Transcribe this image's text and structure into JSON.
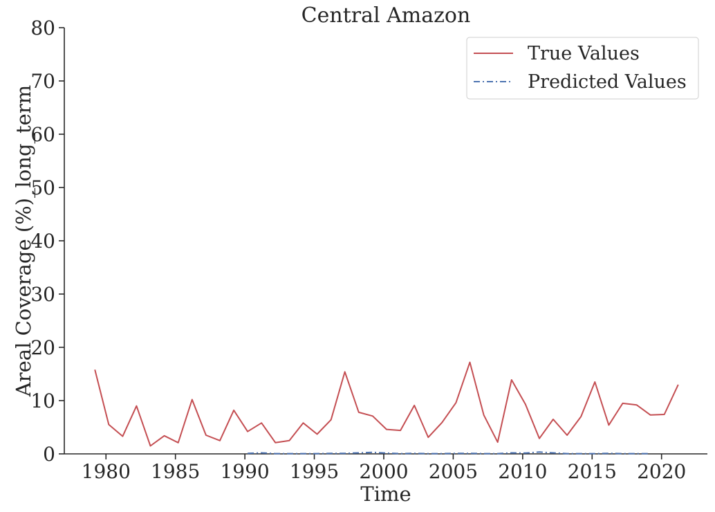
{
  "chart_data": {
    "type": "line",
    "title": "Central Amazon",
    "xlabel": "Time",
    "ylabel": "Areal Coverage (%)_long_term",
    "xlim": [
      1977,
      2023.3
    ],
    "ylim": [
      0,
      80
    ],
    "x_ticks": [
      1980,
      1985,
      1990,
      1995,
      2000,
      2005,
      2010,
      2015,
      2020
    ],
    "y_ticks": [
      0,
      10,
      20,
      30,
      40,
      50,
      60,
      70,
      80
    ],
    "x_tick_labels": [
      "1980",
      "1985",
      "1990",
      "1995",
      "2000",
      "2005",
      "2010",
      "2015",
      "2020"
    ],
    "y_tick_labels": [
      "0",
      "10",
      "20",
      "30",
      "40",
      "50",
      "60",
      "70",
      "80"
    ],
    "grid": false,
    "legend_position": "top-right",
    "series": [
      {
        "name": "True Values",
        "color": "#c44e52",
        "style": "solid",
        "x": [
          1979.2,
          1980.2,
          1981.2,
          1982.2,
          1983.2,
          1984.2,
          1985.2,
          1986.2,
          1987.2,
          1988.2,
          1989.2,
          1990.2,
          1991.2,
          1992.2,
          1993.2,
          1994.2,
          1995.2,
          1996.2,
          1997.2,
          1998.2,
          1999.2,
          2000.2,
          2001.2,
          2002.2,
          2003.2,
          2004.2,
          2005.2,
          2006.2,
          2007.2,
          2008.2,
          2009.2,
          2010.2,
          2011.2,
          2012.2,
          2013.2,
          2014.2,
          2015.2,
          2016.2,
          2017.2,
          2018.2,
          2019.2,
          2020.2,
          2021.2
        ],
        "values": [
          15.8,
          5.5,
          3.3,
          9.0,
          1.5,
          3.4,
          2.1,
          10.2,
          3.5,
          2.5,
          8.2,
          4.2,
          5.8,
          2.1,
          2.5,
          5.8,
          3.7,
          6.4,
          15.4,
          7.8,
          7.1,
          4.6,
          4.4,
          9.1,
          3.1,
          5.9,
          9.6,
          17.2,
          7.3,
          2.2,
          13.9,
          9.3,
          2.9,
          6.5,
          3.5,
          7.0,
          13.5,
          5.4,
          9.5,
          9.2,
          7.3,
          7.4,
          13.0
        ]
      },
      {
        "name": "Predicted Values",
        "color": "#4c72b0",
        "style": "dashdot",
        "x": [
          1990.2,
          1991.2,
          1992.2,
          1993.2,
          1994.2,
          1995.2,
          1996.2,
          1997.2,
          1998.2,
          1999.2,
          2000.2,
          2001.2,
          2002.2,
          2003.2,
          2004.2,
          2005.2,
          2006.2,
          2007.2,
          2008.2,
          2009.2,
          2010.2,
          2011.2,
          2012.2,
          2013.2,
          2014.2,
          2015.2,
          2016.2,
          2017.2,
          2018.2,
          2019.2
        ],
        "values": [
          0.1,
          0.2,
          0.05,
          0.05,
          0.05,
          0.05,
          0.1,
          0.1,
          0.2,
          0.3,
          0.15,
          0.05,
          0.1,
          0.05,
          0.05,
          0.1,
          0.1,
          0.05,
          0.05,
          0.2,
          0.15,
          0.35,
          0.2,
          0.05,
          0.05,
          0.05,
          0.1,
          0.05,
          0.05,
          0.05
        ]
      }
    ]
  }
}
